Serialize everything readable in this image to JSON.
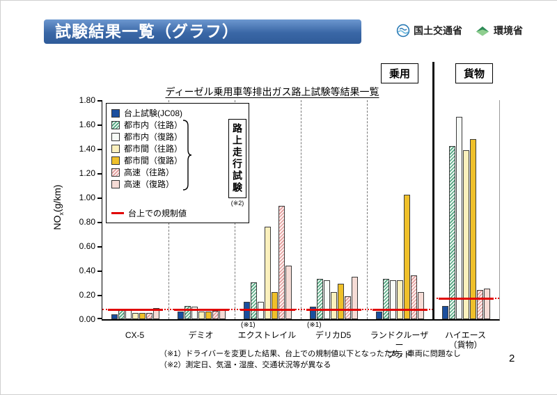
{
  "header": {
    "title": "試験結果一覧（グラフ）",
    "logos": [
      {
        "label": "国土交通省"
      },
      {
        "label": "環境省"
      }
    ]
  },
  "chart": {
    "passenger_label": "乗用",
    "cargo_label": "貨物",
    "title": "ディーゼル乗用車等排出ガス路上試験等結果一覧",
    "y_axis_prefix": "NO",
    "y_axis_sub": "x",
    "y_axis_suffix": "(g/km)"
  },
  "legend": {
    "bench_label": "台上試験(JC08)",
    "road_items": [
      "都市内（往路）",
      "都市内（復路）",
      "都市間（往路）",
      "都市間（復路）",
      "高速（往路）",
      "高速（復路）"
    ],
    "road_group_label": "路上走行試験",
    "road_group_note": "(※2)",
    "regulation_label": "台上での規制値"
  },
  "chart_data": {
    "type": "bar",
    "title": "ディーゼル乗用車等排出ガス路上試験等結果一覧",
    "ylabel": "NOx(g/km)",
    "ylim": [
      0,
      1.8
    ],
    "ytick_step": 0.2,
    "grid": false,
    "legend_position": "upper-left-inside",
    "categories": [
      "CX-5",
      "デミオ",
      "エクストレイル",
      "デリカD5",
      "ランドクルーザープラド",
      "ハイエース（貨物）"
    ],
    "category_lines": [
      [
        "CX-5"
      ],
      [
        "デミオ"
      ],
      [
        "エクストレイル"
      ],
      [
        "デリカD5"
      ],
      [
        "ランドクルーザー",
        "プラド"
      ],
      [
        "ハイエース",
        "（貨物）"
      ]
    ],
    "category_notes": [
      "",
      "",
      "(※1)",
      "(※1)",
      "",
      ""
    ],
    "series": [
      {
        "name": "台上試験(JC08)",
        "style": "bench-blue",
        "values": [
          0.04,
          0.06,
          0.14,
          0.1,
          0.06,
          0.11
        ]
      },
      {
        "name": "都市内（往路）",
        "style": "city-out",
        "values": [
          0.08,
          0.11,
          0.3,
          0.33,
          0.33,
          1.42
        ]
      },
      {
        "name": "都市内（復路）",
        "style": "city-back",
        "values": [
          0.08,
          0.1,
          0.14,
          0.32,
          0.32,
          1.66
        ]
      },
      {
        "name": "都市間（往路）",
        "style": "inter-out",
        "values": [
          0.05,
          0.06,
          0.76,
          0.22,
          0.32,
          1.39
        ]
      },
      {
        "name": "都市間（復路）",
        "style": "inter-back",
        "values": [
          0.05,
          0.06,
          0.22,
          0.29,
          1.02,
          1.48
        ]
      },
      {
        "name": "高速（往路）",
        "style": "hwy-out",
        "values": [
          0.05,
          0.07,
          0.93,
          0.19,
          0.36,
          0.24
        ]
      },
      {
        "name": "高速（復路）",
        "style": "hwy-back",
        "values": [
          0.09,
          0.08,
          0.44,
          0.35,
          0.22,
          0.25
        ]
      }
    ],
    "regulation_values": [
      0.08,
      0.08,
      0.08,
      0.08,
      0.08,
      0.17
    ],
    "divider_after_category": 4,
    "section_labels": {
      "passenger": "乗用",
      "cargo": "貨物"
    }
  },
  "footnotes": [
    "（※1）ドライバーを変更した結果、台上での規制値以下となったため、車両に問題なし",
    "（※2）測定日、気温・湿度、交通状況等が異なる"
  ],
  "footer": {
    "page": "2"
  },
  "colors": {
    "banner_blue": "#3a67a6",
    "bench_blue": "#1b4f9e",
    "city_out_green": "#4fa57f",
    "inter_out_cream": "#fbf0bd",
    "inter_back_gold": "#efc02a",
    "hwy_out_pink": "#e29c9c",
    "hwy_back_pink": "#f6dcd6",
    "regulation_red": "#e00000"
  }
}
